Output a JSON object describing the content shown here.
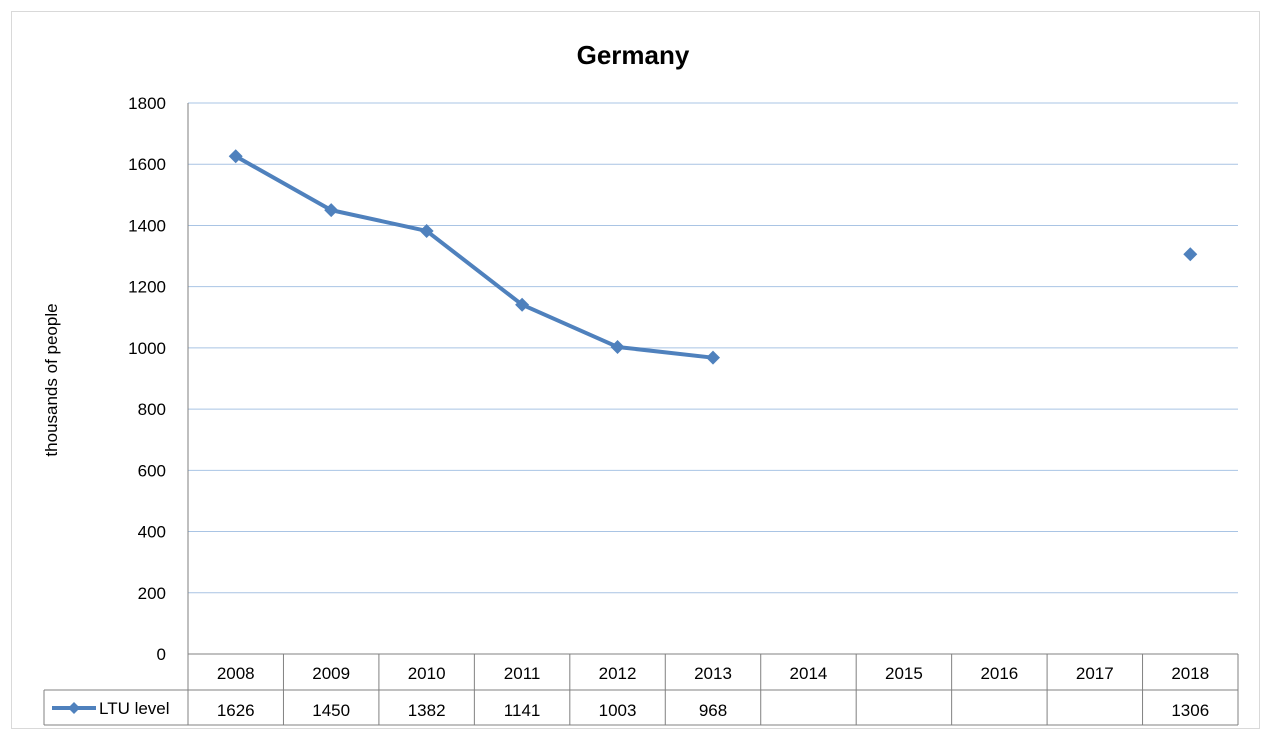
{
  "chart_data": {
    "type": "line",
    "title": "Germany",
    "ylabel": "thousands of people",
    "xlabel": "",
    "ylim": [
      0,
      1800
    ],
    "yticks": [
      0,
      200,
      400,
      600,
      800,
      1000,
      1200,
      1400,
      1600,
      1800
    ],
    "categories": [
      "2008",
      "2009",
      "2010",
      "2011",
      "2012",
      "2013",
      "2014",
      "2015",
      "2016",
      "2017",
      "2018"
    ],
    "series": [
      {
        "name": "LTU level",
        "values": [
          1626,
          1450,
          1382,
          1141,
          1003,
          968,
          null,
          null,
          null,
          null,
          1306
        ],
        "value_labels": [
          "1626",
          "1450",
          "1382",
          "1141",
          "1003",
          "968",
          "",
          "",
          "",
          "",
          "1306"
        ],
        "color": "#4f81bd",
        "marker": "diamond"
      }
    ],
    "grid": true,
    "gridline_color": "#a9c4e4",
    "legend": "data-table",
    "data_table": true
  }
}
